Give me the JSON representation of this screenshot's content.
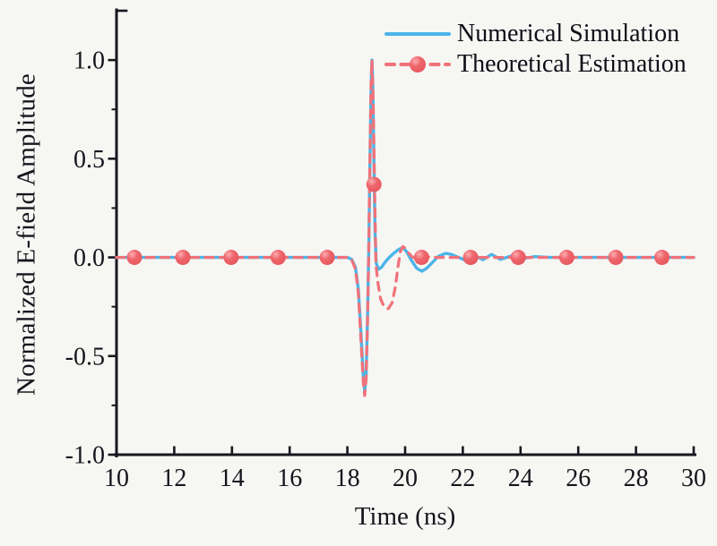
{
  "chart_data": {
    "type": "line",
    "title": "",
    "xlabel": "Time (ns)",
    "ylabel": "Normalized E-field Amplitude",
    "xlim": [
      10,
      30
    ],
    "ylim": [
      -1.0,
      1.25
    ],
    "grid": false,
    "legend_position": "top-right-inside",
    "x_ticks": [
      10,
      12,
      14,
      16,
      18,
      20,
      22,
      24,
      26,
      28,
      30
    ],
    "x_tick_labels": [
      "10",
      "12",
      "14",
      "16",
      "18",
      "20",
      "22",
      "24",
      "26",
      "28",
      "30"
    ],
    "y_ticks": [
      -1.0,
      -0.5,
      0.0,
      0.5,
      1.0
    ],
    "y_tick_labels": [
      "-1.0",
      "-0.5",
      "0.0",
      "0.5",
      "1.0"
    ],
    "y_minor_ticks": [
      -0.75,
      -0.25,
      0.25,
      0.75
    ],
    "series": [
      {
        "name": "Numerical Simulation",
        "style": "solid",
        "color": "#4cb4e8",
        "width": 3.4,
        "points": [
          [
            10,
            0
          ],
          [
            11,
            0
          ],
          [
            12,
            0
          ],
          [
            13,
            0
          ],
          [
            14,
            0
          ],
          [
            15,
            0
          ],
          [
            16,
            0
          ],
          [
            17,
            0
          ],
          [
            17.6,
            0
          ],
          [
            18,
            0
          ],
          [
            18.15,
            -0.01
          ],
          [
            18.28,
            -0.05
          ],
          [
            18.38,
            -0.16
          ],
          [
            18.47,
            -0.38
          ],
          [
            18.55,
            -0.6
          ],
          [
            18.6,
            -0.68
          ],
          [
            18.65,
            -0.6
          ],
          [
            18.7,
            -0.3
          ],
          [
            18.74,
            0.02
          ],
          [
            18.78,
            0.45
          ],
          [
            18.82,
            0.85
          ],
          [
            18.85,
            1.0
          ],
          [
            18.88,
            0.88
          ],
          [
            18.92,
            0.5
          ],
          [
            18.96,
            0.12
          ],
          [
            19.0,
            -0.03
          ],
          [
            19.08,
            -0.06
          ],
          [
            19.18,
            -0.05
          ],
          [
            19.3,
            -0.025
          ],
          [
            19.45,
            0
          ],
          [
            19.6,
            0.02
          ],
          [
            19.78,
            0.04
          ],
          [
            19.92,
            0.05
          ],
          [
            20.05,
            0.03
          ],
          [
            20.2,
            -0.01
          ],
          [
            20.4,
            -0.055
          ],
          [
            20.58,
            -0.07
          ],
          [
            20.75,
            -0.055
          ],
          [
            20.95,
            -0.025
          ],
          [
            21.15,
            0.005
          ],
          [
            21.4,
            0.02
          ],
          [
            21.6,
            0.015
          ],
          [
            21.85,
            0
          ],
          [
            22.1,
            -0.015
          ],
          [
            22.4,
            0.01
          ],
          [
            22.7,
            -0.012
          ],
          [
            23.0,
            0.015
          ],
          [
            23.3,
            -0.01
          ],
          [
            23.7,
            0.008
          ],
          [
            24.1,
            -0.005
          ],
          [
            24.5,
            0.004
          ],
          [
            25,
            0
          ],
          [
            26,
            0
          ],
          [
            27,
            0
          ],
          [
            28,
            0
          ],
          [
            29,
            0
          ],
          [
            30,
            0
          ]
        ]
      },
      {
        "name": "Theoretical Estimation",
        "style": "dashed",
        "color": "#f1727a",
        "width": 3.2,
        "dash": "9 7.5",
        "marker": "sphere",
        "points": [
          [
            10,
            0
          ],
          [
            11,
            0
          ],
          [
            12,
            0
          ],
          [
            13,
            0
          ],
          [
            14,
            0
          ],
          [
            15,
            0
          ],
          [
            16,
            0
          ],
          [
            17,
            0
          ],
          [
            17.6,
            0
          ],
          [
            18,
            0
          ],
          [
            18.15,
            -0.012
          ],
          [
            18.28,
            -0.06
          ],
          [
            18.38,
            -0.18
          ],
          [
            18.47,
            -0.42
          ],
          [
            18.55,
            -0.63
          ],
          [
            18.6,
            -0.7
          ],
          [
            18.65,
            -0.62
          ],
          [
            18.7,
            -0.32
          ],
          [
            18.74,
            0.02
          ],
          [
            18.78,
            0.48
          ],
          [
            18.82,
            0.88
          ],
          [
            18.85,
            1.0
          ],
          [
            18.89,
            0.82
          ],
          [
            18.94,
            0.37
          ],
          [
            18.99,
            -0.04
          ],
          [
            19.06,
            -0.13
          ],
          [
            19.15,
            -0.21
          ],
          [
            19.27,
            -0.25
          ],
          [
            19.42,
            -0.26
          ],
          [
            19.55,
            -0.23
          ],
          [
            19.66,
            -0.15
          ],
          [
            19.76,
            -0.04
          ],
          [
            19.84,
            0.03
          ],
          [
            19.92,
            0.055
          ],
          [
            20.02,
            0.045
          ],
          [
            20.12,
            0.022
          ],
          [
            20.25,
            0.002
          ],
          [
            20.45,
            -0.012
          ],
          [
            20.6,
            -0.005
          ],
          [
            20.8,
            0.003
          ],
          [
            21.1,
            0
          ],
          [
            21.6,
            0
          ],
          [
            22,
            0
          ],
          [
            23,
            0
          ],
          [
            24,
            0
          ],
          [
            25,
            0
          ],
          [
            26,
            0
          ],
          [
            27,
            0
          ],
          [
            28,
            0
          ],
          [
            29,
            0
          ],
          [
            30,
            0
          ]
        ],
        "marker_points": [
          [
            10.62,
            0
          ],
          [
            12.3,
            0
          ],
          [
            13.97,
            0
          ],
          [
            15.6,
            0
          ],
          [
            17.3,
            0
          ],
          [
            18.92,
            0.37
          ],
          [
            20.57,
            0
          ],
          [
            22.27,
            0
          ],
          [
            23.92,
            0
          ],
          [
            25.6,
            0
          ],
          [
            27.3,
            0
          ],
          [
            28.9,
            0
          ]
        ]
      }
    ]
  },
  "legend": {
    "items": [
      {
        "label": "Numerical Simulation"
      },
      {
        "label": "Theoretical Estimation"
      }
    ]
  },
  "colors": {
    "background": "#f6f6f3",
    "axis": "#17171f",
    "tick_text": "#15151d",
    "simulation_blue": "#4cb4e8",
    "estimation_red": "#f1727a",
    "marker_highlight": "#fcaeb2",
    "marker_body": "#ee666c",
    "marker_edge": "#e7565d"
  }
}
